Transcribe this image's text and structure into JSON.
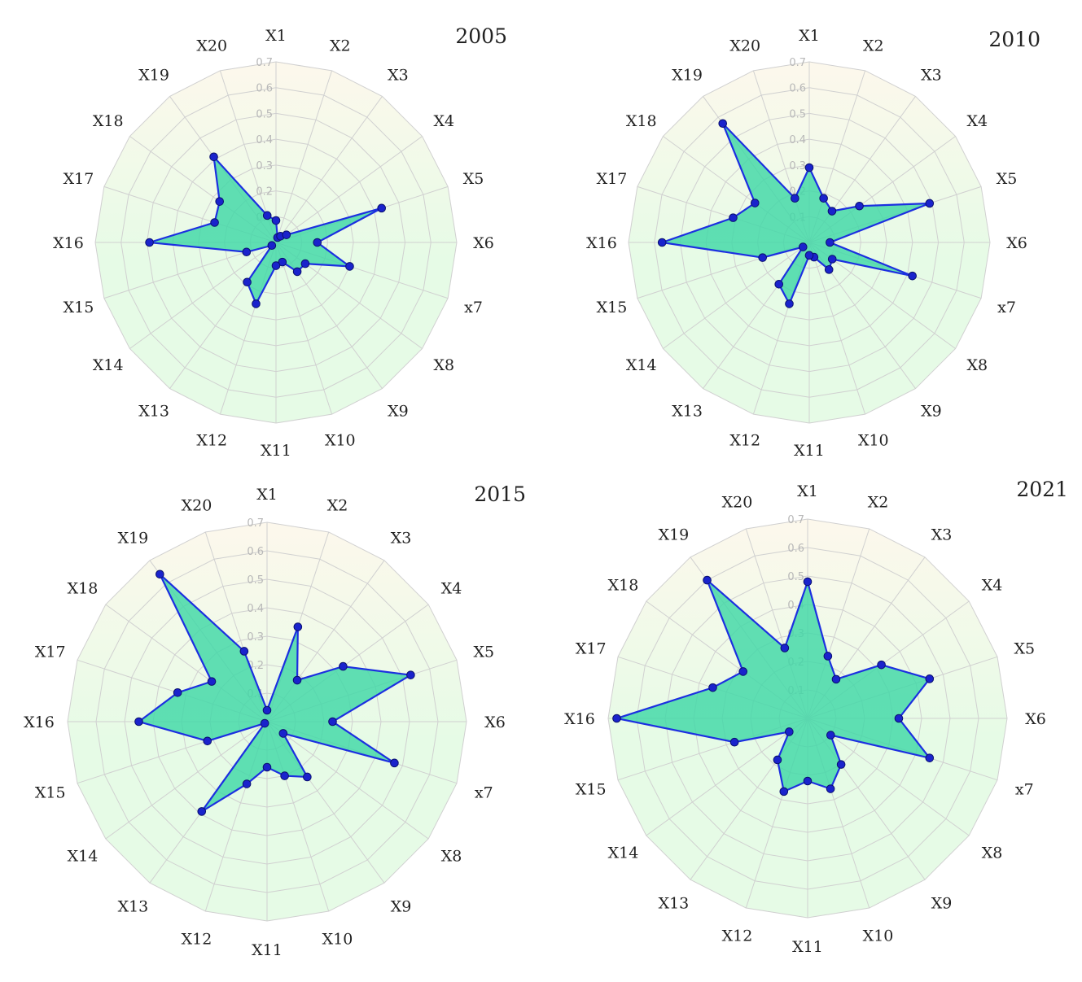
{
  "colors": {
    "fill": "#3fd8a6",
    "line": "#1c2fe0",
    "point": "#1a23cc",
    "background_top": "#fdf8ec",
    "background_bottom": "#e6fbe6",
    "grid": "#d0d0d0"
  },
  "chart_data": [
    {
      "type": "radar",
      "title": "2005",
      "axes": [
        "X1",
        "X2",
        "X3",
        "X4",
        "X5",
        "X6",
        "x7",
        "X8",
        "X9",
        "X10",
        "X11",
        "X12",
        "X13",
        "X14",
        "X15",
        "X16",
        "X17",
        "X18",
        "X19",
        "X20"
      ],
      "ticks": [
        "0.1",
        "0.2",
        "0.3",
        "0.4",
        "0.5",
        "0.6",
        "0.7"
      ],
      "rlim": [
        0,
        0.7
      ],
      "grid": true,
      "values": [
        0.085,
        0.02,
        0.03,
        0.05,
        0.43,
        0.16,
        0.3,
        0.14,
        0.14,
        0.08,
        0.09,
        0.25,
        0.19,
        0.02,
        0.12,
        0.49,
        0.25,
        0.27,
        0.41,
        0.11
      ]
    },
    {
      "type": "radar",
      "title": "2010",
      "axes": [
        "X1",
        "X2",
        "X3",
        "X4",
        "X5",
        "X6",
        "x7",
        "X8",
        "X9",
        "X10",
        "X11",
        "X12",
        "X13",
        "X14",
        "X15",
        "X16",
        "X17",
        "X18",
        "X19",
        "X20"
      ],
      "ticks": [
        "0.1",
        "0.2",
        "0.3",
        "0.4",
        "0.5",
        "0.6",
        "0.7"
      ],
      "rlim": [
        0,
        0.7
      ],
      "grid": true,
      "values": [
        0.29,
        0.18,
        0.15,
        0.24,
        0.49,
        0.08,
        0.42,
        0.11,
        0.13,
        0.06,
        0.05,
        0.25,
        0.2,
        0.03,
        0.19,
        0.57,
        0.31,
        0.26,
        0.57,
        0.18
      ]
    },
    {
      "type": "radar",
      "title": "2015",
      "axes": [
        "X1",
        "X2",
        "X3",
        "X4",
        "X5",
        "X6",
        "x7",
        "X8",
        "X9",
        "X10",
        "X11",
        "X12",
        "X13",
        "X14",
        "X15",
        "X16",
        "X17",
        "X18",
        "X19",
        "X20"
      ],
      "ticks": [
        "0.1",
        "0.2",
        "0.3",
        "0.4",
        "0.5",
        "0.6",
        "0.7"
      ],
      "rlim": [
        0,
        0.7
      ],
      "grid": true,
      "values": [
        0.04,
        0.35,
        0.18,
        0.33,
        0.53,
        0.23,
        0.47,
        0.07,
        0.24,
        0.2,
        0.16,
        0.23,
        0.39,
        0.01,
        0.22,
        0.45,
        0.33,
        0.24,
        0.64,
        0.26
      ]
    },
    {
      "type": "radar",
      "title": "2021",
      "axes": [
        "X1",
        "X2",
        "X3",
        "X4",
        "X5",
        "X6",
        "x7",
        "X8",
        "X9",
        "X10",
        "X11",
        "X12",
        "X13",
        "X14",
        "X15",
        "X16",
        "X17",
        "X18",
        "X19",
        "X20"
      ],
      "ticks": [
        "0.1",
        "0.2",
        "0.3",
        "0.4",
        "0.5",
        "0.6",
        "0.7"
      ],
      "rlim": [
        0,
        0.7
      ],
      "grid": true,
      "values": [
        0.48,
        0.23,
        0.17,
        0.32,
        0.45,
        0.32,
        0.45,
        0.1,
        0.2,
        0.26,
        0.22,
        0.27,
        0.18,
        0.08,
        0.27,
        0.67,
        0.35,
        0.28,
        0.6,
        0.26
      ]
    }
  ]
}
